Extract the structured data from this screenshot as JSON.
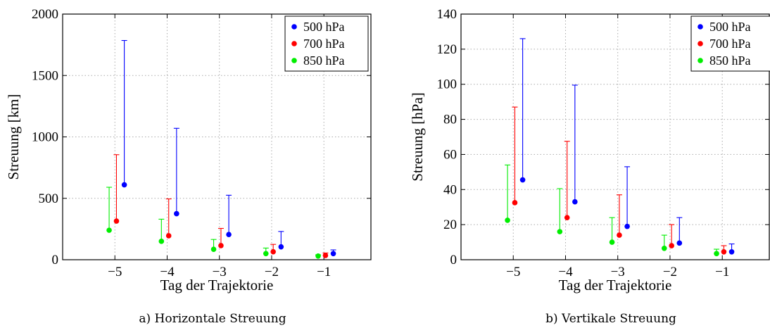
{
  "chart_data": [
    {
      "type": "scatter",
      "caption": "a) Horizontale Streuung",
      "xlabel": "Tag der Trajektorie",
      "ylabel": "Streuung [km]",
      "xlim": [
        -6,
        -0.1
      ],
      "ylim": [
        0,
        2000
      ],
      "xticks": [
        -5,
        -4,
        -3,
        -2,
        -1
      ],
      "xtick_labels": [
        "−5",
        "−4",
        "−3",
        "−2",
        "−1"
      ],
      "yticks": [
        0,
        500,
        1000,
        1500,
        2000
      ],
      "ytick_labels": [
        "0",
        "500",
        "1000",
        "1500",
        "2000"
      ],
      "grid": true,
      "legend": "top-right",
      "series": [
        {
          "name": "500 hPa",
          "color": "#0000ff",
          "x": [
            -5,
            -4,
            -3,
            -2,
            -1
          ],
          "values": [
            610,
            375,
            205,
            105,
            50
          ],
          "upper": [
            1785,
            1070,
            525,
            230,
            80
          ]
        },
        {
          "name": "700 hPa",
          "color": "#ff0000",
          "x": [
            -5,
            -4,
            -3,
            -2,
            -1
          ],
          "values": [
            315,
            195,
            115,
            65,
            35
          ],
          "upper": [
            855,
            495,
            255,
            125,
            55
          ]
        },
        {
          "name": "850 hPa",
          "color": "#00ee00",
          "x": [
            -5,
            -4,
            -3,
            -2,
            -1
          ],
          "values": [
            240,
            150,
            85,
            50,
            30
          ],
          "upper": [
            590,
            330,
            165,
            95,
            40
          ]
        }
      ]
    },
    {
      "type": "scatter",
      "caption": "b) Vertikale Streuung",
      "xlabel": "Tag der Trajektorie",
      "ylabel": "Streuung [hPa]",
      "xlim": [
        -6,
        -0.1
      ],
      "ylim": [
        0,
        140
      ],
      "xticks": [
        -5,
        -4,
        -3,
        -2,
        -1
      ],
      "xtick_labels": [
        "−5",
        "−4",
        "−3",
        "−2",
        "−1"
      ],
      "yticks": [
        0,
        20,
        40,
        60,
        80,
        100,
        120,
        140
      ],
      "ytick_labels": [
        "0",
        "20",
        "40",
        "60",
        "80",
        "100",
        "120",
        "140"
      ],
      "grid": true,
      "legend": "top-right",
      "series": [
        {
          "name": "500 hPa",
          "color": "#0000ff",
          "x": [
            -5,
            -4,
            -3,
            -2,
            -1
          ],
          "values": [
            45.5,
            33,
            19,
            9.5,
            4.5
          ],
          "upper": [
            126,
            99.5,
            53,
            24,
            9
          ]
        },
        {
          "name": "700 hPa",
          "color": "#ff0000",
          "x": [
            -5,
            -4,
            -3,
            -2,
            -1
          ],
          "values": [
            32.5,
            24,
            14,
            8,
            4.5
          ],
          "upper": [
            87,
            67.5,
            37,
            20,
            8
          ]
        },
        {
          "name": "850 hPa",
          "color": "#00ee00",
          "x": [
            -5,
            -4,
            -3,
            -2,
            -1
          ],
          "values": [
            22.5,
            16,
            10,
            6.5,
            3.5
          ],
          "upper": [
            54,
            40.5,
            24,
            14,
            6
          ]
        }
      ]
    }
  ]
}
